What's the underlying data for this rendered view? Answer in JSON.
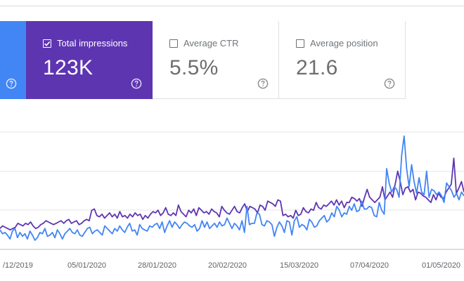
{
  "cards": {
    "clicks": {
      "selected": true,
      "color": "#4285f4"
    },
    "impressions": {
      "label": "Total impressions",
      "value": "123K",
      "selected": true,
      "color": "#5e35b1"
    },
    "ctr": {
      "label": "Average CTR",
      "value": "5.5%",
      "selected": false
    },
    "position": {
      "label": "Average position",
      "value": "21.6",
      "selected": false
    }
  },
  "chart_data": {
    "type": "line",
    "x_tick_labels": [
      "/12/2019",
      "05/01/2020",
      "28/01/2020",
      "20/02/2020",
      "15/03/2020",
      "07/04/2020",
      "01/05/2020"
    ],
    "grid": true,
    "y_axis_labels_visible": false,
    "series": [
      {
        "metric": "impressions",
        "color": "#5e35b1",
        "values": [
          16,
          18,
          17,
          16,
          15,
          16,
          17,
          20,
          19,
          18,
          20,
          19,
          21,
          18,
          16,
          17,
          19,
          20,
          22,
          21,
          20,
          19,
          20,
          21,
          22,
          20,
          22,
          23,
          20,
          21,
          22,
          19,
          20,
          22,
          23,
          22,
          30,
          31,
          26,
          25,
          27,
          24,
          26,
          28,
          25,
          27,
          24,
          29,
          25,
          26,
          24,
          27,
          25,
          28,
          26,
          27,
          23,
          26,
          24,
          27,
          29,
          28,
          30,
          26,
          28,
          32,
          27,
          26,
          28,
          26,
          34,
          29,
          27,
          25,
          30,
          28,
          31,
          26,
          32,
          30,
          28,
          29,
          27,
          31,
          29,
          28,
          25,
          33,
          30,
          28,
          27,
          30,
          33,
          29,
          28,
          32,
          35,
          29,
          33,
          32,
          31,
          28,
          34,
          33,
          30,
          37,
          36,
          35,
          33,
          38,
          37,
          26,
          27,
          25,
          26,
          24,
          30,
          26,
          27,
          32,
          29,
          28,
          31,
          30,
          36,
          32,
          31,
          34,
          33,
          35,
          37,
          34,
          38,
          34,
          37,
          32,
          36,
          36,
          40,
          39,
          37,
          39,
          33,
          40,
          46,
          40,
          38,
          36,
          38,
          40,
          48,
          38,
          41,
          44,
          40,
          50,
          60,
          52,
          42,
          47,
          48,
          44,
          46,
          38,
          44,
          43,
          41,
          40,
          38,
          36,
          42,
          38,
          43,
          40,
          39,
          44,
          47,
          50,
          70,
          43,
          47,
          52,
          44
        ]
      },
      {
        "metric": "clicks",
        "color": "#4285f4",
        "values": [
          15,
          12,
          13,
          11,
          8,
          14,
          16,
          9,
          13,
          10,
          12,
          8,
          14,
          11,
          7,
          9,
          13,
          12,
          16,
          10,
          11,
          13,
          9,
          15,
          12,
          8,
          12,
          14,
          16,
          13,
          12,
          15,
          11,
          10,
          13,
          16,
          17,
          12,
          14,
          15,
          13,
          11,
          18,
          16,
          14,
          12,
          16,
          14,
          18,
          15,
          13,
          17,
          20,
          14,
          15,
          11,
          19,
          16,
          15,
          14,
          18,
          17,
          19,
          20,
          16,
          21,
          13,
          18,
          22,
          17,
          21,
          19,
          16,
          19,
          21,
          20,
          18,
          17,
          19,
          14,
          16,
          22,
          17,
          21,
          16,
          18,
          20,
          17,
          21,
          18,
          19,
          24,
          20,
          16,
          20,
          18,
          15,
          22,
          13,
          33,
          19,
          20,
          20,
          28,
          27,
          19,
          18,
          22,
          21,
          19,
          10,
          17,
          21,
          18,
          13,
          22,
          21,
          11,
          22,
          25,
          17,
          19,
          18,
          15,
          23,
          21,
          17,
          18,
          22,
          24,
          26,
          21,
          23,
          28,
          25,
          33,
          30,
          25,
          28,
          27,
          33,
          30,
          35,
          29,
          30,
          37,
          31,
          31,
          33,
          32,
          26,
          25,
          36,
          30,
          27,
          62,
          51,
          44,
          48,
          46,
          40,
          72,
          87,
          62,
          48,
          65,
          52,
          43,
          55,
          44,
          42,
          60,
          40,
          46,
          45,
          42,
          44,
          41,
          36,
          51,
          48,
          45,
          40,
          43,
          38,
          44,
          41
        ]
      }
    ]
  }
}
